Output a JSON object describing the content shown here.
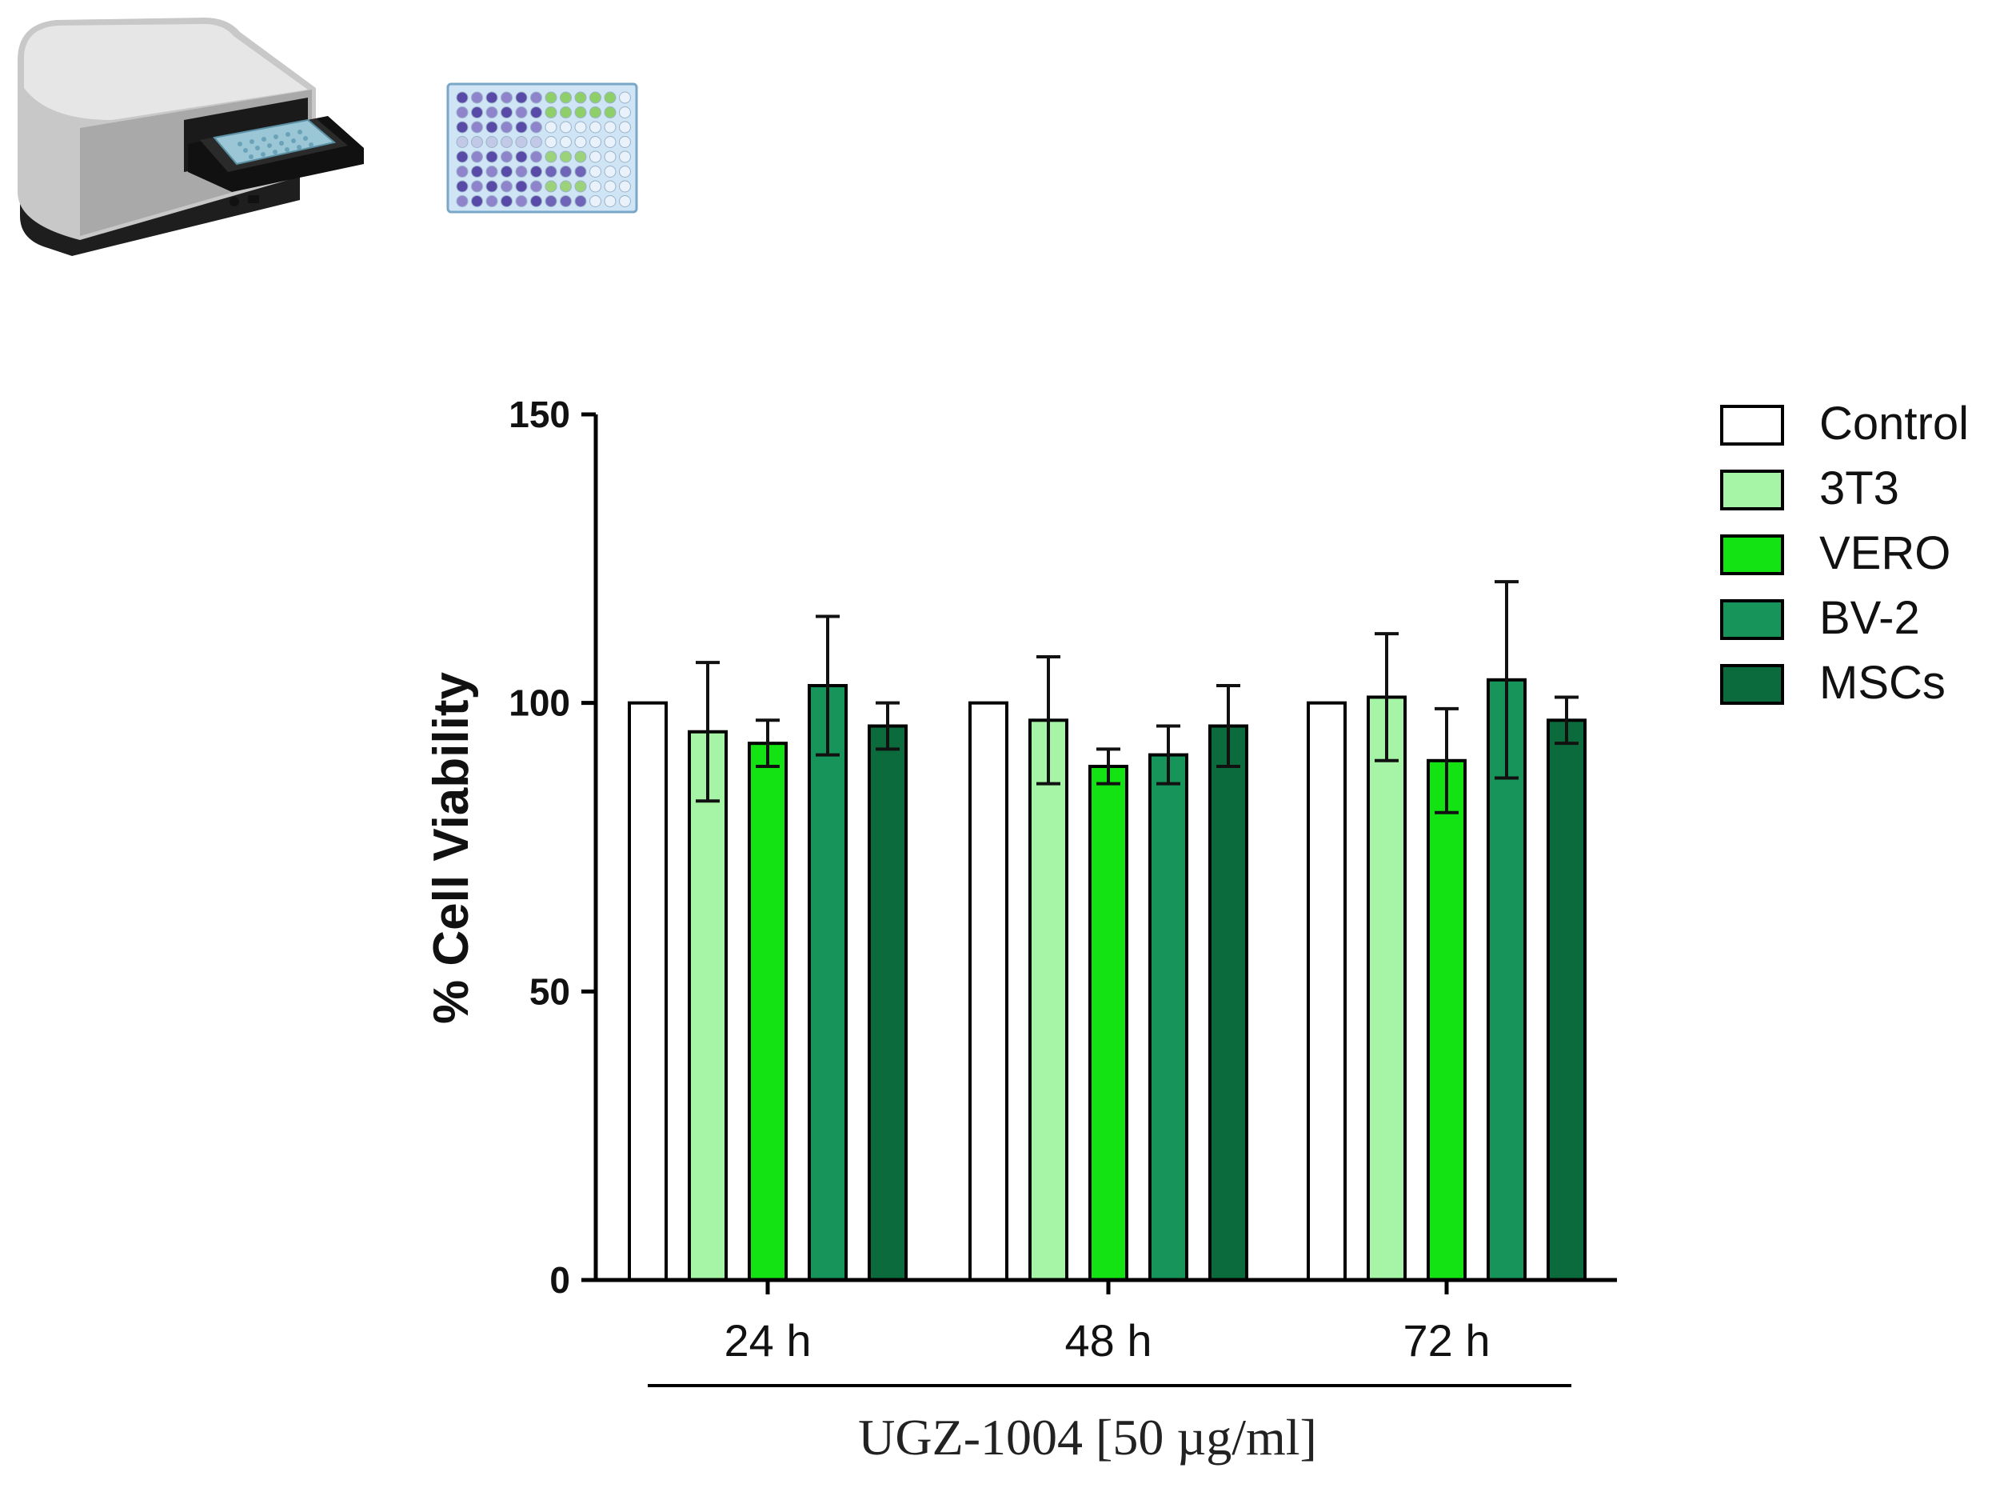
{
  "chart_data": {
    "type": "bar",
    "ylabel": "% Cell Viability",
    "xlabel": "UGZ-1004 [50 µg/ml]",
    "ylim": [
      0,
      150
    ],
    "yticks": [
      "0",
      "50",
      "100",
      "150"
    ],
    "categories": [
      "24 h",
      "48 h",
      "72 h"
    ],
    "legend_position": "top-right",
    "grid": false,
    "series": [
      {
        "name": "Control",
        "color": "#ffffff",
        "values": [
          100,
          100,
          100
        ],
        "errors": [
          0,
          0,
          0
        ]
      },
      {
        "name": "3T3",
        "color": "#a6f5a6",
        "values": [
          95,
          97,
          101
        ],
        "errors": [
          12,
          11,
          11
        ]
      },
      {
        "name": "VERO",
        "color": "#13e313",
        "values": [
          93,
          89,
          90
        ],
        "errors": [
          4,
          3,
          9
        ]
      },
      {
        "name": "BV-2",
        "color": "#17945a",
        "values": [
          103,
          91,
          104
        ],
        "errors": [
          12,
          5,
          17
        ]
      },
      {
        "name": "MSCs",
        "color": "#0c6b3c",
        "values": [
          96,
          96,
          97
        ],
        "errors": [
          4,
          7,
          4
        ]
      }
    ]
  },
  "illustrations": {
    "plate_reader_icon": "plate-reader-icon",
    "well_plate_icon": "well-plate-icon"
  }
}
